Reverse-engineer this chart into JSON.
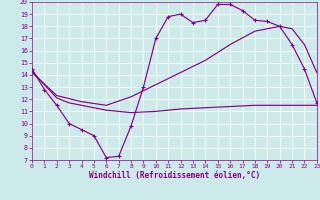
{
  "bg_color": "#cceaea",
  "grid_color": "#ffffff",
  "line_color": "#880088",
  "xlim": [
    0,
    23
  ],
  "ylim": [
    7,
    20
  ],
  "xticks": [
    0,
    1,
    2,
    3,
    4,
    5,
    6,
    7,
    8,
    9,
    10,
    11,
    12,
    13,
    14,
    15,
    16,
    17,
    18,
    19,
    20,
    21,
    22,
    23
  ],
  "yticks": [
    7,
    8,
    9,
    10,
    11,
    12,
    13,
    14,
    15,
    16,
    17,
    18,
    19,
    20
  ],
  "xlabel": "Windchill (Refroidissement éolien,°C)",
  "line1_x": [
    0,
    1,
    2,
    3,
    4,
    5,
    6,
    7,
    8,
    9,
    10,
    11,
    12,
    13,
    14,
    15,
    16,
    17,
    18,
    19,
    20,
    21,
    22,
    23
  ],
  "line1_y": [
    14.5,
    12.8,
    11.5,
    10.0,
    9.5,
    9.0,
    7.2,
    7.3,
    9.8,
    13.0,
    17.0,
    18.8,
    19.0,
    18.3,
    18.5,
    19.8,
    19.8,
    19.3,
    18.5,
    18.4,
    18.0,
    16.5,
    14.5,
    11.7
  ],
  "line2_x": [
    0,
    2,
    3,
    4,
    5,
    6,
    7,
    8,
    10,
    12,
    14,
    16,
    18,
    20,
    22,
    23
  ],
  "line2_y": [
    14.3,
    12.1,
    11.7,
    11.5,
    11.3,
    11.1,
    11.0,
    10.9,
    11.0,
    11.2,
    11.3,
    11.4,
    11.5,
    11.5,
    11.5,
    11.5
  ],
  "line3_x": [
    0,
    2,
    4,
    6,
    8,
    10,
    12,
    14,
    16,
    18,
    20,
    21,
    22,
    23
  ],
  "line3_y": [
    14.2,
    12.3,
    11.8,
    11.5,
    12.2,
    13.2,
    14.2,
    15.2,
    16.5,
    17.6,
    18.0,
    17.8,
    16.5,
    14.2
  ]
}
